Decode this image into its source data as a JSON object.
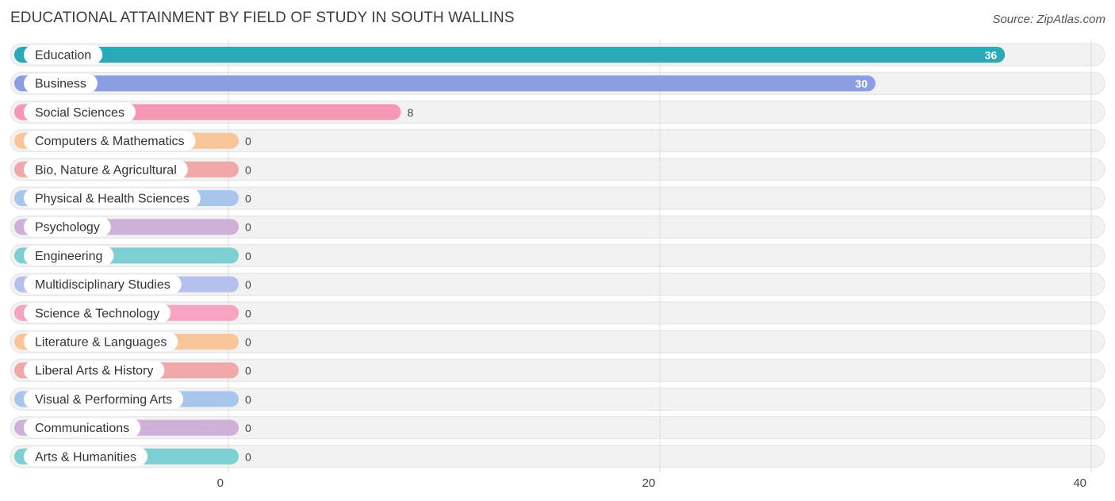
{
  "title": "EDUCATIONAL ATTAINMENT BY FIELD OF STUDY IN SOUTH WALLINS",
  "source": "Source: ZipAtlas.com",
  "chart_data": {
    "type": "bar",
    "orientation": "horizontal",
    "title": "EDUCATIONAL ATTAINMENT BY FIELD OF STUDY IN SOUTH WALLINS",
    "xlabel": "",
    "ylabel": "",
    "xlim": [
      0,
      40
    ],
    "x_ticks": [
      0,
      20,
      40
    ],
    "grid": true,
    "legend": "none",
    "categories": [
      "Education",
      "Business",
      "Social Sciences",
      "Computers & Mathematics",
      "Bio, Nature & Agricultural",
      "Physical & Health Sciences",
      "Psychology",
      "Engineering",
      "Multidisciplinary Studies",
      "Science & Technology",
      "Literature & Languages",
      "Liberal Arts & History",
      "Visual & Performing Arts",
      "Communications",
      "Arts & Humanities"
    ],
    "values": [
      36,
      30,
      8,
      0,
      0,
      0,
      0,
      0,
      0,
      0,
      0,
      0,
      0,
      0,
      0
    ],
    "colors": [
      "#2aa9b8",
      "#8c9ee3",
      "#f598b6",
      "#f9c598",
      "#f0a9a9",
      "#a8c6ec",
      "#cfb0d8",
      "#7ccfd3",
      "#b6c0ee",
      "#f7a3c2",
      "#f9c598",
      "#f0a9a9",
      "#a8c6ec",
      "#cfb0d8",
      "#7ccfd3"
    ]
  }
}
